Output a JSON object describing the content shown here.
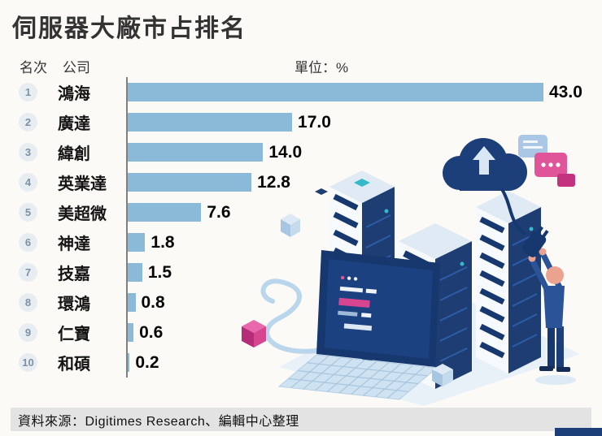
{
  "header": {
    "title": "伺服器大廠市占排名",
    "rank_col": "名次",
    "company_col": "公司",
    "unit_label": "單位：%"
  },
  "footer": {
    "source": "資料來源：Digitimes Research、編輯中心整理"
  },
  "chart_data": {
    "type": "bar",
    "orientation": "horizontal",
    "title": "伺服器大廠市占排名",
    "unit": "%",
    "xlim": [
      0,
      43
    ],
    "grid": false,
    "legend": "none",
    "categories": [
      "鴻海",
      "廣達",
      "緯創",
      "英業達",
      "美超微",
      "神達",
      "技嘉",
      "環鴻",
      "仁寶",
      "和碩"
    ],
    "values": [
      43.0,
      17.0,
      14.0,
      12.8,
      7.6,
      1.8,
      1.5,
      0.8,
      0.6,
      0.2
    ],
    "rows": [
      {
        "rank": "1",
        "company": "鴻海",
        "value": 43.0,
        "label": "43.0"
      },
      {
        "rank": "2",
        "company": "廣達",
        "value": 17.0,
        "label": "17.0"
      },
      {
        "rank": "3",
        "company": "緯創",
        "value": 14.0,
        "label": "14.0"
      },
      {
        "rank": "4",
        "company": "英業達",
        "value": 12.8,
        "label": "12.8"
      },
      {
        "rank": "5",
        "company": "美超微",
        "value": 7.6,
        "label": "7.6"
      },
      {
        "rank": "6",
        "company": "神達",
        "value": 1.8,
        "label": "1.8"
      },
      {
        "rank": "7",
        "company": "技嘉",
        "value": 1.5,
        "label": "1.5"
      },
      {
        "rank": "8",
        "company": "環鴻",
        "value": 0.8,
        "label": "0.8"
      },
      {
        "rank": "9",
        "company": "仁寶",
        "value": 0.6,
        "label": "0.6"
      },
      {
        "rank": "10",
        "company": "和碩",
        "value": 0.2,
        "label": "0.2"
      }
    ]
  },
  "colors": {
    "bar": "#8abad8",
    "axis": "#808080",
    "navy": "#1c3f7a",
    "magenta": "#d6458f",
    "light_blue": "#cfe2f1",
    "source_band_bg": "#e3e3e3"
  },
  "illustration": {
    "description": "isometric cloud, server racks, laptop and technician plugging cable"
  }
}
